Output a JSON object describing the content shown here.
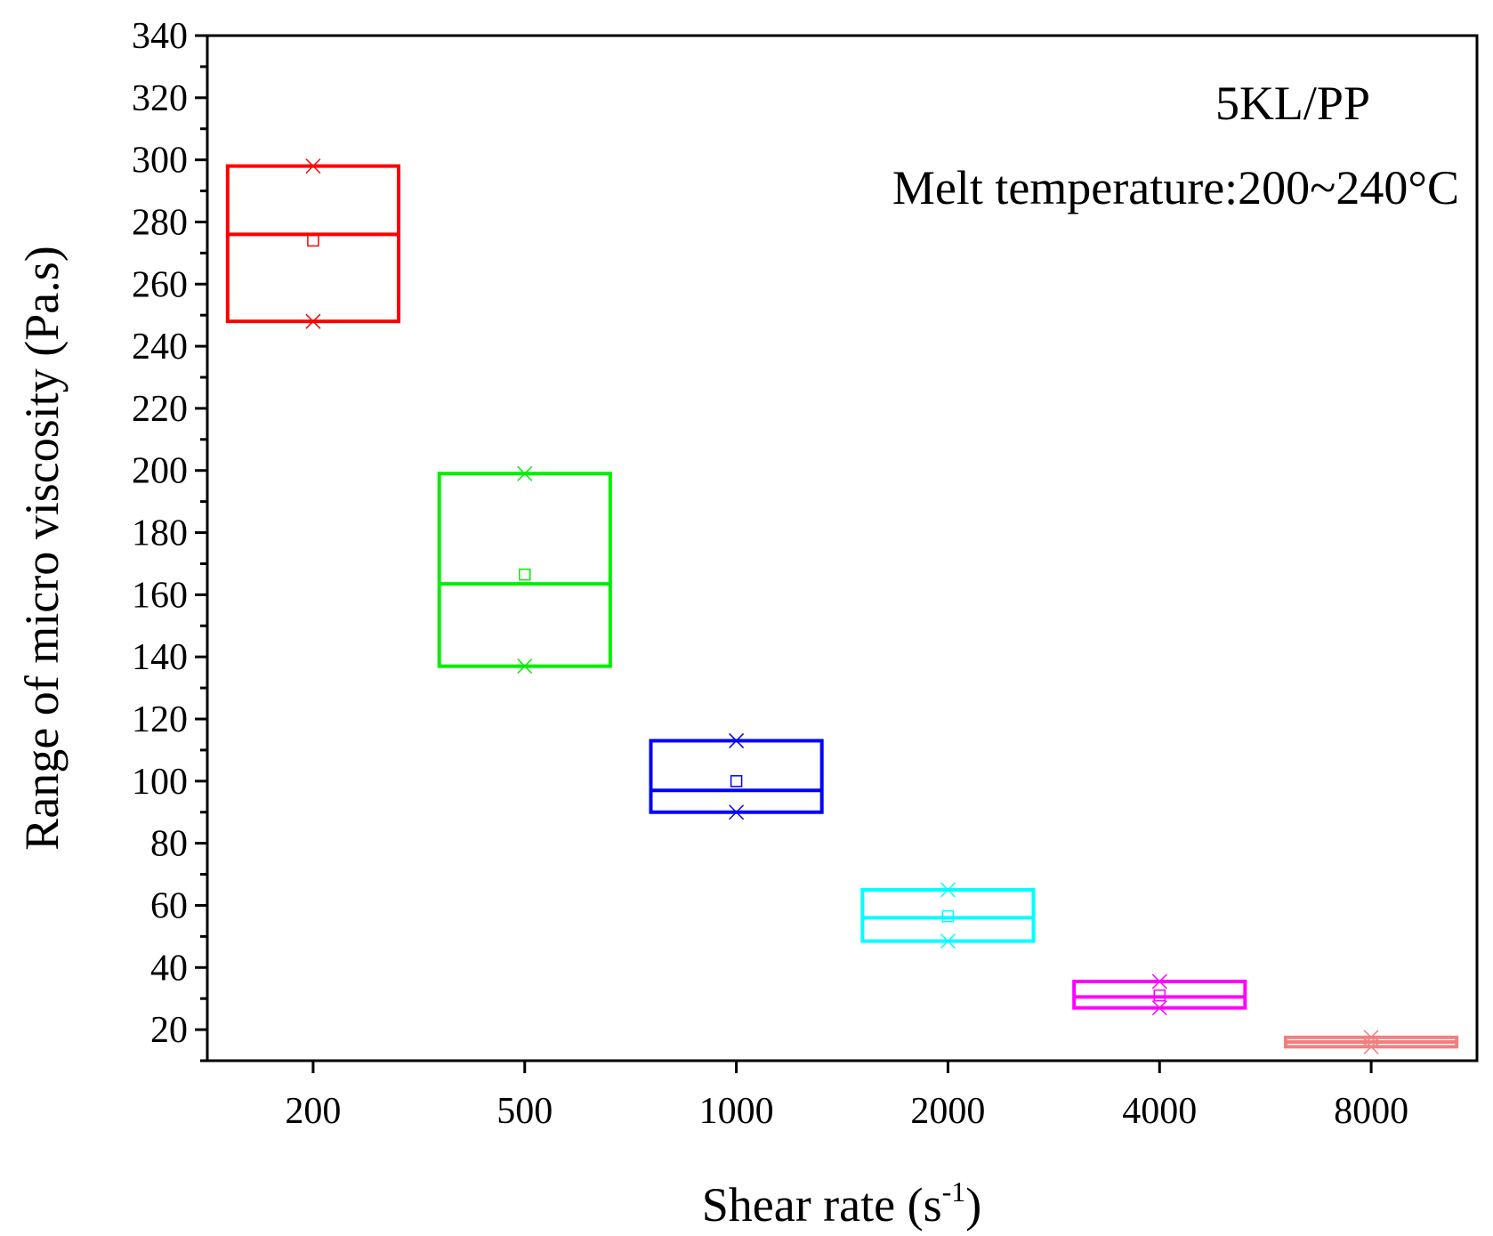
{
  "chart_data": {
    "type": "box",
    "title": "",
    "xlabel": "Shear rate (s",
    "xlabel_sup": "-1",
    "xlabel_close": ")",
    "ylabel": "Range of micro viscosity (Pa.s)",
    "ylim": [
      10,
      340
    ],
    "yticks": [
      20,
      40,
      60,
      80,
      100,
      120,
      140,
      160,
      180,
      200,
      220,
      240,
      260,
      280,
      300,
      320,
      340
    ],
    "categories": [
      "200",
      "500",
      "1000",
      "2000",
      "4000",
      "8000"
    ],
    "boxes": [
      {
        "category": "200",
        "q1": 248,
        "median": 276,
        "q3": 298,
        "mean": 274,
        "min": 248,
        "max": 298,
        "color": "#ff0000"
      },
      {
        "category": "500",
        "q1": 137,
        "median": 163.5,
        "q3": 199,
        "mean": 166.5,
        "min": 137,
        "max": 199,
        "color": "#00ee00"
      },
      {
        "category": "1000",
        "q1": 90,
        "median": 97,
        "q3": 113,
        "mean": 100,
        "min": 90,
        "max": 113,
        "color": "#0000ff"
      },
      {
        "category": "2000",
        "q1": 48.5,
        "median": 56,
        "q3": 65,
        "mean": 56.5,
        "min": 48.5,
        "max": 65,
        "color": "#00ffff"
      },
      {
        "category": "4000",
        "q1": 27,
        "median": 30.5,
        "q3": 35.5,
        "mean": 31,
        "min": 27,
        "max": 35.5,
        "color": "#ff00ff"
      },
      {
        "category": "8000",
        "q1": 14.5,
        "median": 16,
        "q3": 17.5,
        "mean": 16,
        "min": 14.5,
        "max": 17.5,
        "color": "#f08080"
      }
    ],
    "annotations": [
      "5KL/PP",
      "Melt temperature:200~240°C"
    ]
  }
}
